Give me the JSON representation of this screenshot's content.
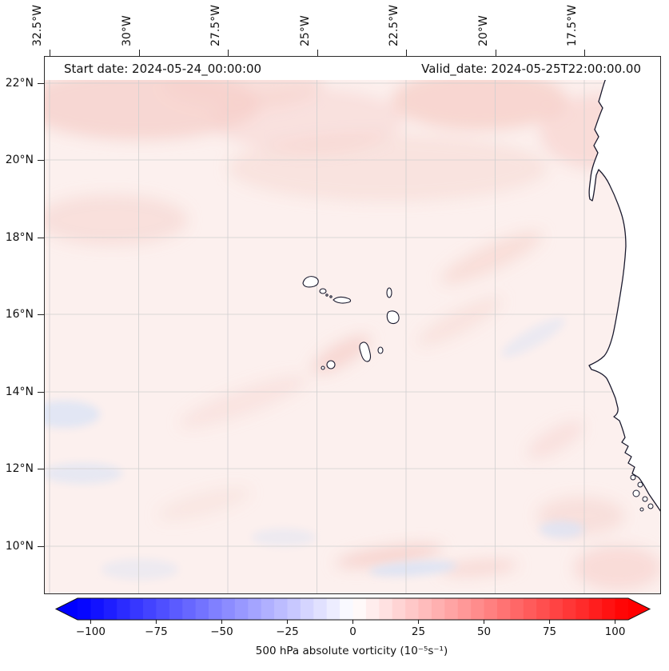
{
  "titles": {
    "start": "Start date: 2024-05-24_00:00:00",
    "valid": "Valid_date: 2024-05-25T22:00:00.00"
  },
  "axes": {
    "lon_ticks": [
      "32.5°W",
      "30°W",
      "27.5°W",
      "25°W",
      "22.5°W",
      "20°W",
      "17.5°W"
    ],
    "lat_ticks": [
      "22°N",
      "20°N",
      "18°N",
      "16°N",
      "14°N",
      "12°N",
      "10°N"
    ]
  },
  "chart_data": {
    "type": "heatmap",
    "description": "Filled-contour map of 500 hPa absolute vorticity over the eastern tropical Atlantic: Cape Verde islands near the center, West African coastline (Mauritania to Guinea-Bissau) on the right.",
    "start_date": "2024-05-24_00:00:00",
    "valid_date": "2024-05-25T22:00:00.00",
    "x_axis": {
      "position": "top",
      "ticks": [
        "32.5°W",
        "30°W",
        "27.5°W",
        "25°W",
        "22.5°W",
        "20°W",
        "17.5°W"
      ],
      "tick_rotation_deg": 90
    },
    "y_axis": {
      "position": "left",
      "ticks": [
        "22°N",
        "20°N",
        "18°N",
        "16°N",
        "14°N",
        "12°N",
        "10°N"
      ]
    },
    "grid": true,
    "field_summary": "Mostly weak positive vorticity (faint red shading, roughly 0 to 15) over the whole domain, strongest in a band north of ~19°N; a few weak negative (faint blue) patches south of ~15°N and near the bottom edge.",
    "colorbar": {
      "label": "500 hPa absolute vorticity (10⁻⁵s⁻¹)",
      "orientation": "horizontal",
      "cmap": "blue-white-red",
      "extend": "both",
      "min": -105,
      "max": 105,
      "band_step": 5,
      "ticks": [
        {
          "value": -100,
          "label": "−100"
        },
        {
          "value": -75,
          "label": "−75"
        },
        {
          "value": -50,
          "label": "−50"
        },
        {
          "value": -25,
          "label": "−25"
        },
        {
          "value": 0,
          "label": "0"
        },
        {
          "value": 25,
          "label": "25"
        },
        {
          "value": 50,
          "label": "50"
        },
        {
          "value": 75,
          "label": "75"
        },
        {
          "value": 100,
          "label": "100"
        }
      ],
      "colors": {
        "negative_end": "#0000ff",
        "zero": "#ffffff",
        "positive_end": "#ff0000"
      }
    }
  }
}
